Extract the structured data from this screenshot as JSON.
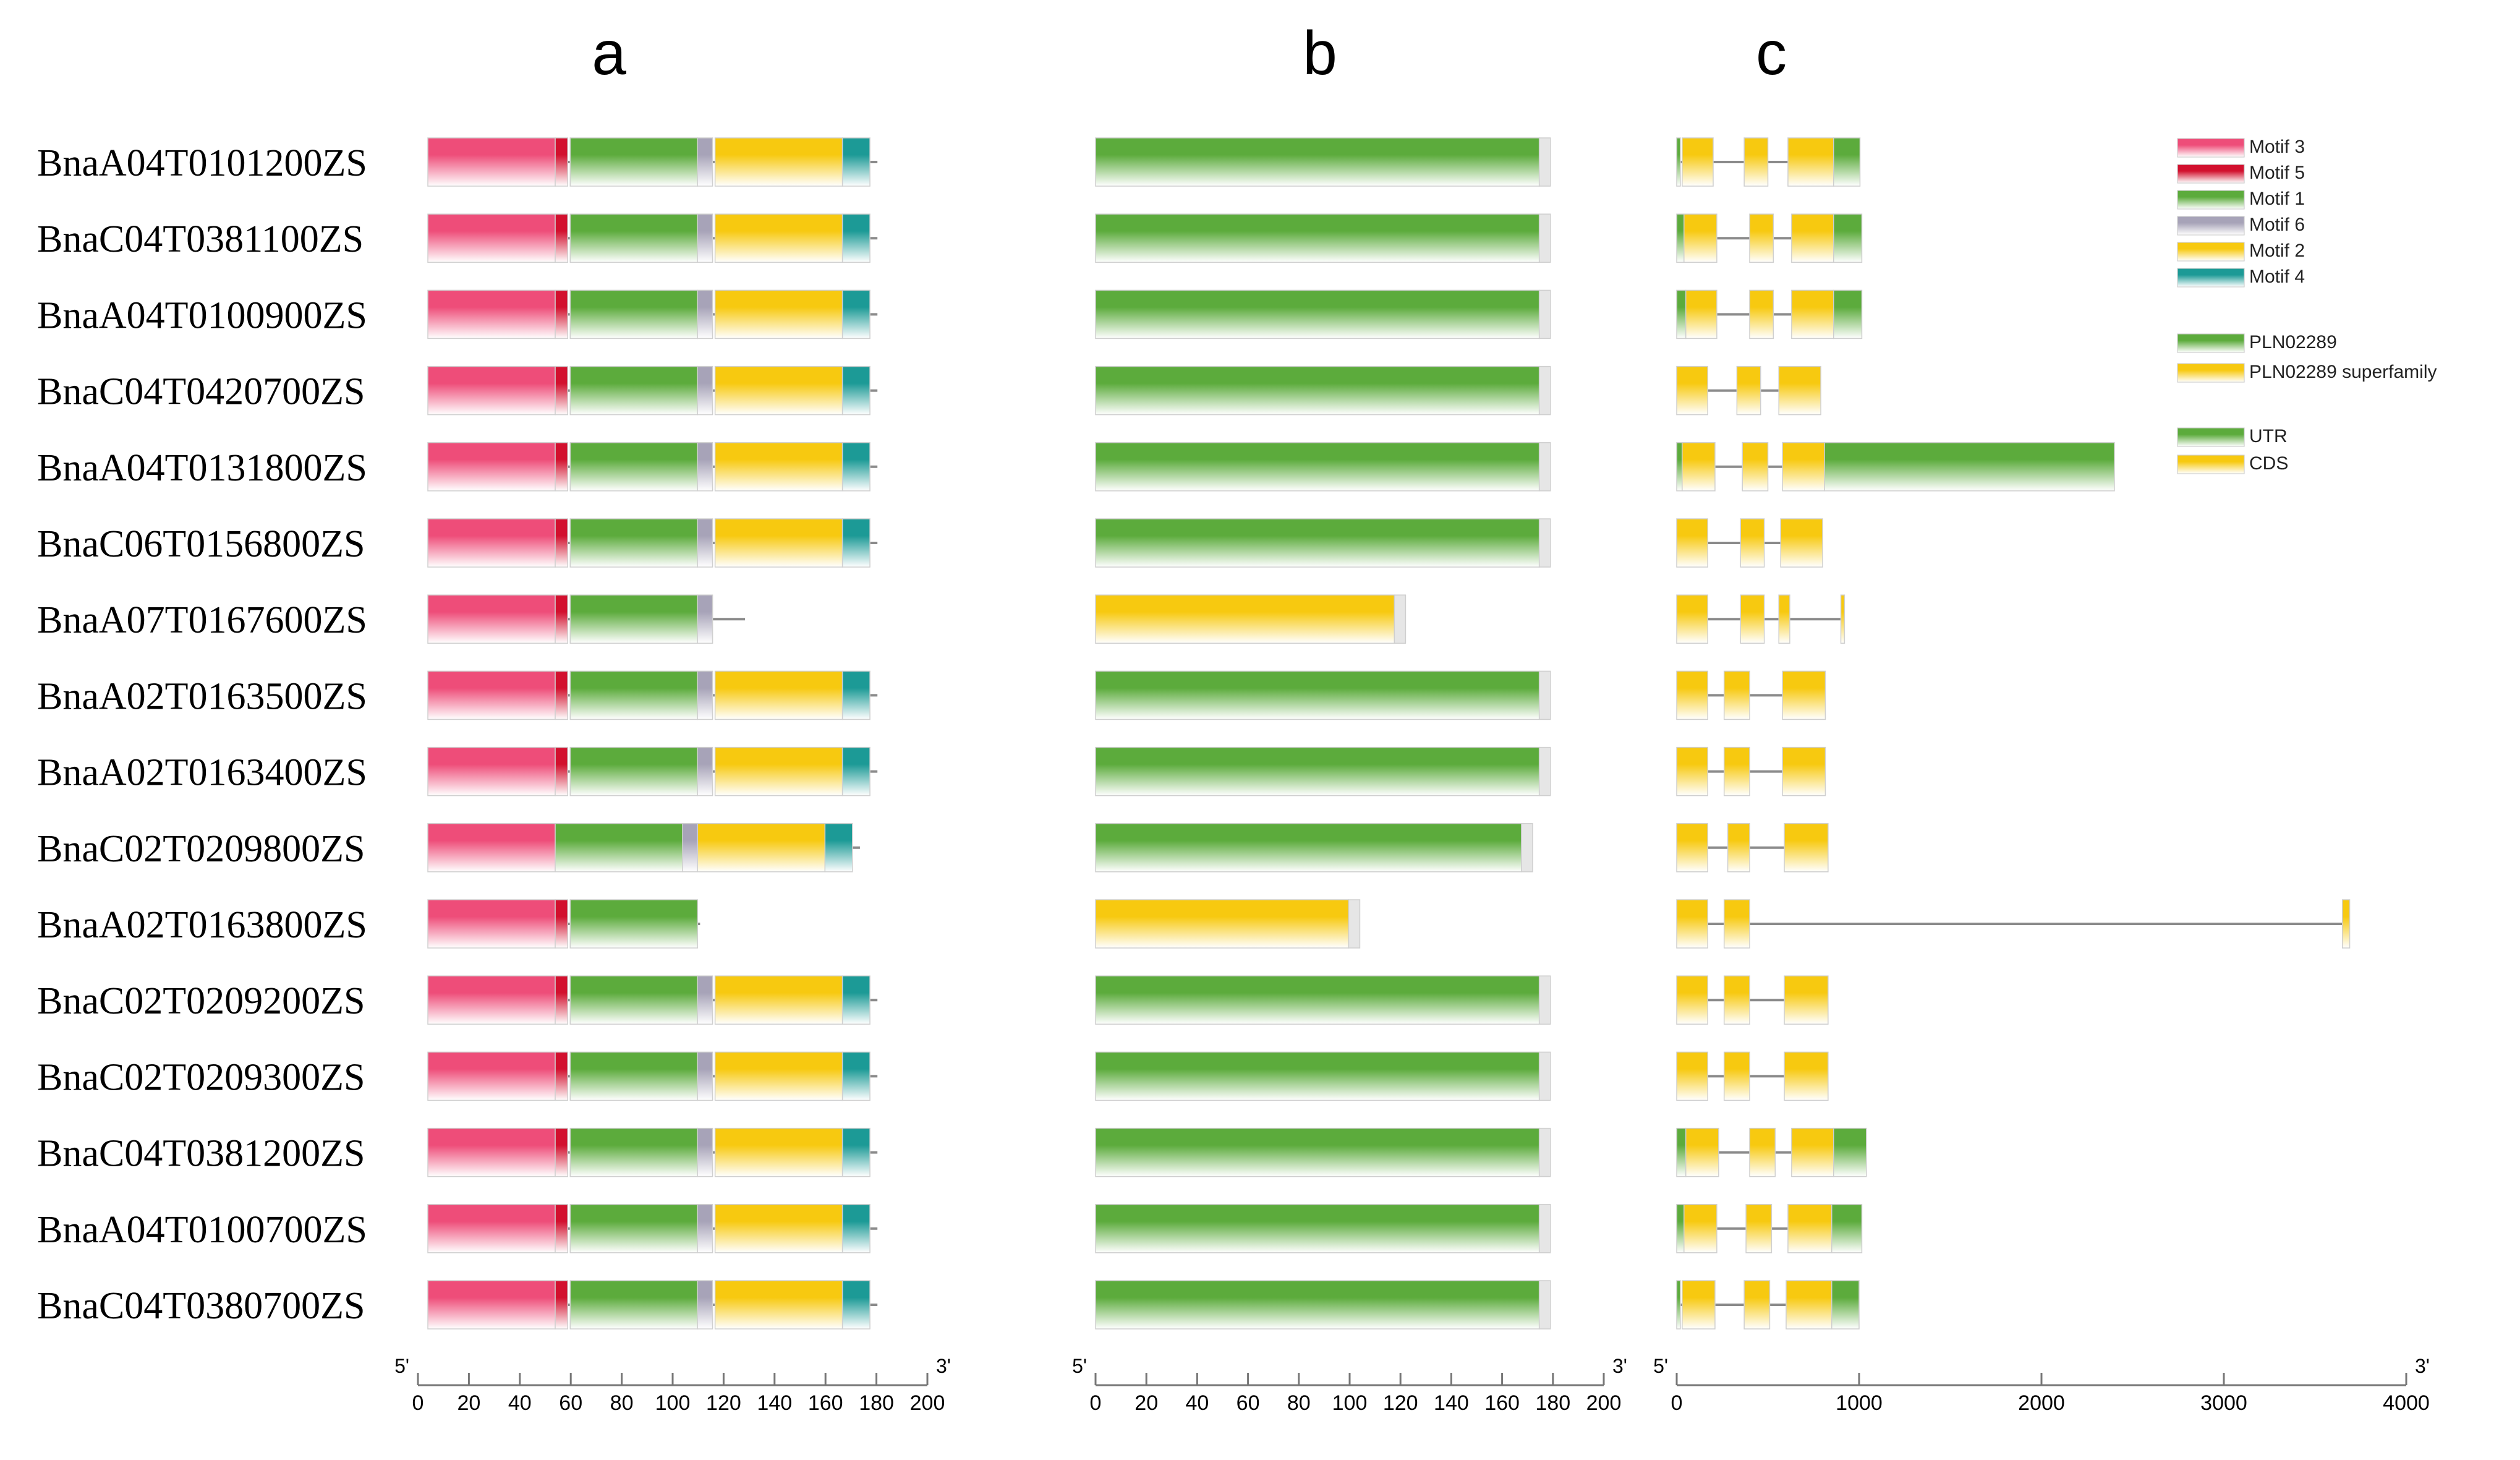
{
  "panel_titles": {
    "a": "a",
    "b": "b",
    "c": "c"
  },
  "colors": {
    "motif3": "#ee4d79",
    "motif5": "#d2102e",
    "motif1": "#5cab3c",
    "motif6": "#a7a3b8",
    "motif2": "#f7c910",
    "motif4": "#1c9a96",
    "pln": "#5cab3c",
    "superfamily": "#f7c910",
    "utr": "#5cab3c",
    "cds": "#f7c910",
    "line": "#8a8a8a"
  },
  "legend": {
    "motifs": [
      {
        "key": "motif3",
        "label": "Motif 3"
      },
      {
        "key": "motif5",
        "label": "Motif 5"
      },
      {
        "key": "motif1",
        "label": "Motif 1"
      },
      {
        "key": "motif6",
        "label": "Motif 6"
      },
      {
        "key": "motif2",
        "label": "Motif 2"
      },
      {
        "key": "motif4",
        "label": "Motif 4"
      }
    ],
    "domains": [
      {
        "key": "pln",
        "label": "PLN02289"
      },
      {
        "key": "superfamily",
        "label": "PLN02289 superfamily"
      }
    ],
    "gene_parts": [
      {
        "key": "utr",
        "label": "UTR"
      },
      {
        "key": "cds",
        "label": "CDS"
      }
    ]
  },
  "axes": {
    "a": {
      "start_label": "5'",
      "end_label": "3'",
      "ticks": [
        "0",
        "20",
        "40",
        "60",
        "80",
        "100",
        "120",
        "140",
        "160",
        "180",
        "200"
      ],
      "min": 0,
      "max": 200
    },
    "b": {
      "start_label": "5'",
      "end_label": "3'",
      "ticks": [
        "0",
        "20",
        "40",
        "60",
        "80",
        "100",
        "120",
        "140",
        "160",
        "180",
        "200"
      ],
      "min": 0,
      "max": 200
    },
    "c": {
      "start_label": "5'",
      "end_label": "3'",
      "ticks": [
        "0",
        "1000",
        "2000",
        "3000",
        "4000"
      ],
      "min": 0,
      "max": 4000
    }
  },
  "genes": [
    {
      "id": "BnaA04T0101200ZS",
      "len": 180,
      "motifs": [
        [
          0,
          51,
          "motif3"
        ],
        [
          51,
          56,
          "motif5"
        ],
        [
          57,
          108,
          "motif1"
        ],
        [
          108,
          114,
          "motif6"
        ],
        [
          115,
          166,
          "motif2"
        ],
        [
          166,
          177,
          "motif4"
        ]
      ],
      "domain": {
        "len": 179,
        "key": "pln"
      },
      "struct": {
        "end": 1005,
        "utr": [
          [
            0,
            20
          ],
          [
            860,
            1005
          ]
        ],
        "exons": [
          [
            30,
            200
          ],
          [
            370,
            500
          ],
          [
            610,
            860
          ]
        ]
      }
    },
    {
      "id": "BnaC04T0381100ZS",
      "len": 180,
      "motifs": [
        [
          0,
          51,
          "motif3"
        ],
        [
          51,
          56,
          "motif5"
        ],
        [
          57,
          108,
          "motif1"
        ],
        [
          108,
          114,
          "motif6"
        ],
        [
          115,
          166,
          "motif2"
        ],
        [
          166,
          177,
          "motif4"
        ]
      ],
      "domain": {
        "len": 179,
        "key": "pln"
      },
      "struct": {
        "end": 1015,
        "utr": [
          [
            0,
            40
          ],
          [
            860,
            1015
          ]
        ],
        "exons": [
          [
            40,
            220
          ],
          [
            400,
            530
          ],
          [
            630,
            860
          ]
        ]
      }
    },
    {
      "id": "BnaA04T0100900ZS",
      "len": 180,
      "motifs": [
        [
          0,
          51,
          "motif3"
        ],
        [
          51,
          56,
          "motif5"
        ],
        [
          57,
          108,
          "motif1"
        ],
        [
          108,
          114,
          "motif6"
        ],
        [
          115,
          166,
          "motif2"
        ],
        [
          166,
          177,
          "motif4"
        ]
      ],
      "domain": {
        "len": 179,
        "key": "pln"
      },
      "struct": {
        "end": 1015,
        "utr": [
          [
            0,
            50
          ],
          [
            860,
            1015
          ]
        ],
        "exons": [
          [
            50,
            220
          ],
          [
            400,
            530
          ],
          [
            630,
            860
          ]
        ]
      }
    },
    {
      "id": "BnaC04T0420700ZS",
      "len": 180,
      "motifs": [
        [
          0,
          51,
          "motif3"
        ],
        [
          51,
          56,
          "motif5"
        ],
        [
          57,
          108,
          "motif1"
        ],
        [
          108,
          114,
          "motif6"
        ],
        [
          115,
          166,
          "motif2"
        ],
        [
          166,
          177,
          "motif4"
        ]
      ],
      "domain": {
        "len": 179,
        "key": "pln"
      },
      "struct": {
        "end": 790,
        "utr": [],
        "exons": [
          [
            0,
            170
          ],
          [
            330,
            460
          ],
          [
            560,
            790
          ]
        ]
      }
    },
    {
      "id": "BnaA04T0131800ZS",
      "len": 180,
      "motifs": [
        [
          0,
          51,
          "motif3"
        ],
        [
          51,
          56,
          "motif5"
        ],
        [
          57,
          108,
          "motif1"
        ],
        [
          108,
          114,
          "motif6"
        ],
        [
          115,
          166,
          "motif2"
        ],
        [
          166,
          177,
          "motif4"
        ]
      ],
      "domain": {
        "len": 179,
        "key": "pln"
      },
      "struct": {
        "end": 2400,
        "utr": [
          [
            0,
            30
          ],
          [
            810,
            2400
          ]
        ],
        "exons": [
          [
            30,
            210
          ],
          [
            360,
            500
          ],
          [
            580,
            810
          ]
        ]
      }
    },
    {
      "id": "BnaC06T0156800ZS",
      "len": 180,
      "motifs": [
        [
          0,
          51,
          "motif3"
        ],
        [
          51,
          56,
          "motif5"
        ],
        [
          57,
          108,
          "motif1"
        ],
        [
          108,
          114,
          "motif6"
        ],
        [
          115,
          166,
          "motif2"
        ],
        [
          166,
          177,
          "motif4"
        ]
      ],
      "domain": {
        "len": 179,
        "key": "pln"
      },
      "struct": {
        "end": 800,
        "utr": [],
        "exons": [
          [
            0,
            170
          ],
          [
            350,
            480
          ],
          [
            570,
            800
          ]
        ]
      }
    },
    {
      "id": "BnaA07T0167600ZS",
      "len": 127,
      "motifs": [
        [
          0,
          51,
          "motif3"
        ],
        [
          51,
          56,
          "motif5"
        ],
        [
          57,
          108,
          "motif1"
        ],
        [
          108,
          114,
          "motif6"
        ]
      ],
      "domain": {
        "len": 122,
        "key": "superfamily"
      },
      "struct": {
        "end": 920,
        "utr": [],
        "exons": [
          [
            0,
            170
          ],
          [
            350,
            480
          ],
          [
            560,
            620
          ],
          [
            900,
            920
          ]
        ]
      }
    },
    {
      "id": "BnaA02T0163500ZS",
      "len": 180,
      "motifs": [
        [
          0,
          51,
          "motif3"
        ],
        [
          51,
          56,
          "motif5"
        ],
        [
          57,
          108,
          "motif1"
        ],
        [
          108,
          114,
          "motif6"
        ],
        [
          115,
          166,
          "motif2"
        ],
        [
          166,
          177,
          "motif4"
        ]
      ],
      "domain": {
        "len": 179,
        "key": "pln"
      },
      "struct": {
        "end": 815,
        "utr": [],
        "exons": [
          [
            0,
            170
          ],
          [
            260,
            400
          ],
          [
            580,
            815
          ]
        ]
      }
    },
    {
      "id": "BnaA02T0163400ZS",
      "len": 180,
      "motifs": [
        [
          0,
          51,
          "motif3"
        ],
        [
          51,
          56,
          "motif5"
        ],
        [
          57,
          108,
          "motif1"
        ],
        [
          108,
          114,
          "motif6"
        ],
        [
          115,
          166,
          "motif2"
        ],
        [
          166,
          177,
          "motif4"
        ]
      ],
      "domain": {
        "len": 179,
        "key": "pln"
      },
      "struct": {
        "end": 815,
        "utr": [],
        "exons": [
          [
            0,
            170
          ],
          [
            260,
            400
          ],
          [
            580,
            815
          ]
        ]
      }
    },
    {
      "id": "BnaC02T0209800ZS",
      "len": 173,
      "motifs": [
        [
          0,
          51,
          "motif3"
        ],
        [
          51,
          102,
          "motif1"
        ],
        [
          102,
          108,
          "motif6"
        ],
        [
          108,
          159,
          "motif2"
        ],
        [
          159,
          170,
          "motif4"
        ]
      ],
      "domain": {
        "len": 172,
        "key": "pln"
      },
      "struct": {
        "end": 830,
        "utr": [],
        "exons": [
          [
            0,
            170
          ],
          [
            280,
            400
          ],
          [
            590,
            830
          ]
        ]
      }
    },
    {
      "id": "BnaA02T0163800ZS",
      "len": 109,
      "motifs": [
        [
          0,
          51,
          "motif3"
        ],
        [
          51,
          56,
          "motif5"
        ],
        [
          57,
          108,
          "motif1"
        ]
      ],
      "domain": {
        "len": 104,
        "key": "superfamily"
      },
      "struct": {
        "end": 3690,
        "utr": [],
        "exons": [
          [
            0,
            170
          ],
          [
            260,
            400
          ],
          [
            3650,
            3690
          ]
        ]
      }
    },
    {
      "id": "BnaC02T0209200ZS",
      "len": 180,
      "motifs": [
        [
          0,
          51,
          "motif3"
        ],
        [
          51,
          56,
          "motif5"
        ],
        [
          57,
          108,
          "motif1"
        ],
        [
          108,
          114,
          "motif6"
        ],
        [
          115,
          166,
          "motif2"
        ],
        [
          166,
          177,
          "motif4"
        ]
      ],
      "domain": {
        "len": 179,
        "key": "pln"
      },
      "struct": {
        "end": 830,
        "utr": [],
        "exons": [
          [
            0,
            170
          ],
          [
            260,
            400
          ],
          [
            590,
            830
          ]
        ]
      }
    },
    {
      "id": "BnaC02T0209300ZS",
      "len": 180,
      "motifs": [
        [
          0,
          51,
          "motif3"
        ],
        [
          51,
          56,
          "motif5"
        ],
        [
          57,
          108,
          "motif1"
        ],
        [
          108,
          114,
          "motif6"
        ],
        [
          115,
          166,
          "motif2"
        ],
        [
          166,
          177,
          "motif4"
        ]
      ],
      "domain": {
        "len": 179,
        "key": "pln"
      },
      "struct": {
        "end": 830,
        "utr": [],
        "exons": [
          [
            0,
            170
          ],
          [
            260,
            400
          ],
          [
            590,
            830
          ]
        ]
      }
    },
    {
      "id": "BnaC04T0381200ZS",
      "len": 180,
      "motifs": [
        [
          0,
          51,
          "motif3"
        ],
        [
          51,
          56,
          "motif5"
        ],
        [
          57,
          108,
          "motif1"
        ],
        [
          108,
          114,
          "motif6"
        ],
        [
          115,
          166,
          "motif2"
        ],
        [
          166,
          177,
          "motif4"
        ]
      ],
      "domain": {
        "len": 179,
        "key": "pln"
      },
      "struct": {
        "end": 1040,
        "utr": [
          [
            0,
            50
          ],
          [
            860,
            1040
          ]
        ],
        "exons": [
          [
            50,
            230
          ],
          [
            400,
            540
          ],
          [
            630,
            860
          ]
        ]
      }
    },
    {
      "id": "BnaA04T0100700ZS",
      "len": 180,
      "motifs": [
        [
          0,
          51,
          "motif3"
        ],
        [
          51,
          56,
          "motif5"
        ],
        [
          57,
          108,
          "motif1"
        ],
        [
          108,
          114,
          "motif6"
        ],
        [
          115,
          166,
          "motif2"
        ],
        [
          166,
          177,
          "motif4"
        ]
      ],
      "domain": {
        "len": 179,
        "key": "pln"
      },
      "struct": {
        "end": 1015,
        "utr": [
          [
            0,
            40
          ],
          [
            850,
            1015
          ]
        ],
        "exons": [
          [
            40,
            220
          ],
          [
            380,
            520
          ],
          [
            610,
            850
          ]
        ]
      }
    },
    {
      "id": "BnaC04T0380700ZS",
      "len": 180,
      "motifs": [
        [
          0,
          51,
          "motif3"
        ],
        [
          51,
          56,
          "motif5"
        ],
        [
          57,
          108,
          "motif1"
        ],
        [
          108,
          114,
          "motif6"
        ],
        [
          115,
          166,
          "motif2"
        ],
        [
          166,
          177,
          "motif4"
        ]
      ],
      "domain": {
        "len": 179,
        "key": "pln"
      },
      "struct": {
        "end": 1000,
        "utr": [
          [
            0,
            20
          ],
          [
            850,
            1000
          ]
        ],
        "exons": [
          [
            30,
            210
          ],
          [
            370,
            510
          ],
          [
            600,
            850
          ]
        ]
      }
    }
  ]
}
